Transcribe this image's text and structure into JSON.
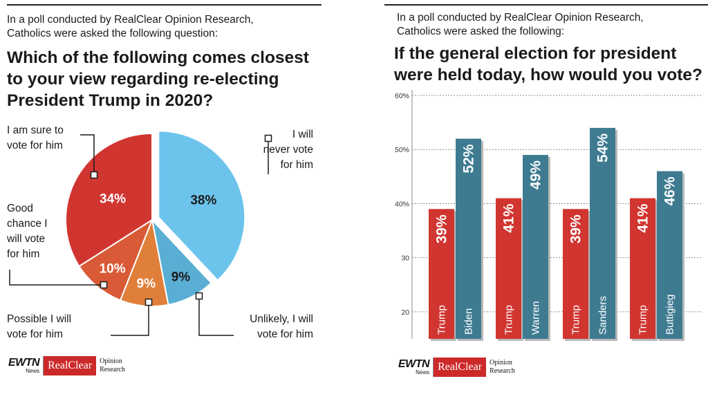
{
  "left_panel": {
    "intro_line1": "In a poll conducted by RealClear Opinion Research,",
    "intro_line2": "Catholics were asked the following question:",
    "question_line1": "Which of the following comes closest",
    "question_line2": "to your view regarding re-electing",
    "question_line3": "President Trump in 2020?"
  },
  "right_panel": {
    "intro_line1": "In a poll conducted by RealClear Opinion Research,",
    "intro_line2": "Catholics were asked the following:",
    "question_line1": "If the general election for president",
    "question_line2": "were held today, how would you vote?"
  },
  "logo": {
    "ewtn": "EWTN",
    "ewtn_sub": "News",
    "realclear": "RealClear",
    "opinion": "Opinion",
    "research": "Research"
  },
  "colors": {
    "red": "#d13530",
    "orange_red": "#d95a36",
    "orange": "#e07f3a",
    "light_blue": "#6cc4ec",
    "mid_blue": "#5aaed3",
    "teal": "#3e7b91"
  },
  "chart_data": [
    {
      "type": "pie",
      "labels": [
        "I will never vote for him",
        "Unlikely, I will vote for him",
        "Possible I will vote for him",
        "Good chance I will vote for him",
        "I am sure to vote for him"
      ],
      "values": [
        38,
        9,
        9,
        10,
        34
      ],
      "value_labels": [
        "38%",
        "9%",
        "9%",
        "10%",
        "34%"
      ],
      "colors": [
        "#6cc4ec",
        "#5aaed3",
        "#e07f3a",
        "#d95a36",
        "#d13530"
      ],
      "exploded": "I will never vote for him",
      "callouts": [
        [
          "I will",
          "never vote",
          "for him"
        ],
        [
          "Unlikely, I will",
          "vote for him"
        ],
        [
          "Possible I will",
          "vote for him"
        ],
        [
          "Good",
          "chance I",
          "will vote",
          "for him"
        ],
        [
          "I am sure to",
          "vote for him"
        ]
      ]
    },
    {
      "type": "bar",
      "ylim": [
        15,
        60
      ],
      "ticks": [
        20,
        30,
        40,
        50,
        60
      ],
      "tick_labels": [
        "20",
        "30",
        "40%",
        "50%",
        "60%"
      ],
      "grid": true,
      "groups": [
        {
          "bars": [
            {
              "name": "Trump",
              "value": 39,
              "label": "39%"
            },
            {
              "name": "Biden",
              "value": 52,
              "label": "52%"
            }
          ]
        },
        {
          "bars": [
            {
              "name": "Trump",
              "value": 41,
              "label": "41%"
            },
            {
              "name": "Warren",
              "value": 49,
              "label": "49%"
            }
          ]
        },
        {
          "bars": [
            {
              "name": "Trump",
              "value": 39,
              "label": "39%"
            },
            {
              "name": "Sanders",
              "value": 54,
              "label": "54%"
            }
          ]
        },
        {
          "bars": [
            {
              "name": "Trump",
              "value": 41,
              "label": "41%"
            },
            {
              "name": "Buttigieg",
              "value": 46,
              "label": "46%"
            }
          ]
        }
      ]
    }
  ]
}
